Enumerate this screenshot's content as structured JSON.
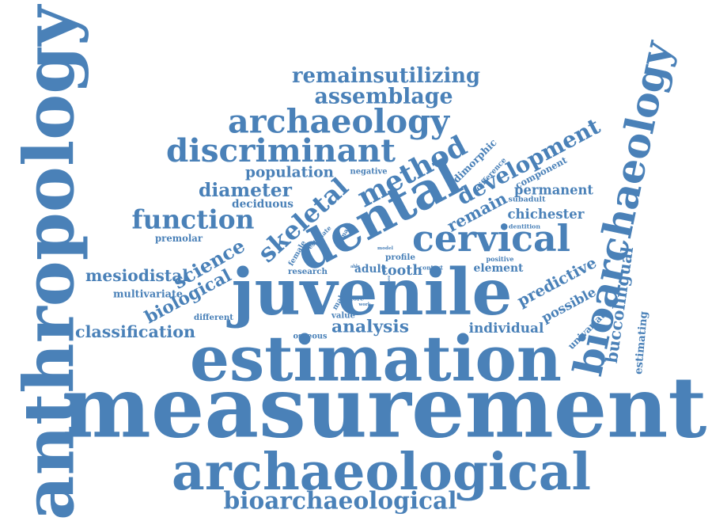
{
  "word_cloud": {
    "text_color": "#4a81b8",
    "background_color": "#ffffff",
    "words": [
      {
        "text": "measurement",
        "weight": 100,
        "orientation": "horizontal"
      },
      {
        "text": "anthropology",
        "weight": 78,
        "orientation": "vertical"
      },
      {
        "text": "juvenile",
        "weight": 66,
        "orientation": "horizontal"
      },
      {
        "text": "estimation",
        "weight": 62,
        "orientation": "horizontal"
      },
      {
        "text": "archaeological",
        "weight": 57,
        "orientation": "horizontal"
      },
      {
        "text": "bioarchaeology",
        "weight": 52,
        "orientation": "vertical"
      },
      {
        "text": "dental",
        "weight": 46,
        "orientation": "diagonal"
      },
      {
        "text": "cervical",
        "weight": 38,
        "orientation": "horizontal"
      },
      {
        "text": "archaeology",
        "weight": 37,
        "orientation": "horizontal"
      },
      {
        "text": "discriminant",
        "weight": 33,
        "orientation": "horizontal"
      },
      {
        "text": "function",
        "weight": 33,
        "orientation": "horizontal"
      },
      {
        "text": "method",
        "weight": 33,
        "orientation": "diagonal"
      },
      {
        "text": "skeletal",
        "weight": 30,
        "orientation": "diagonal"
      },
      {
        "text": "bioarchaeological",
        "weight": 29,
        "orientation": "horizontal"
      },
      {
        "text": "development",
        "weight": 26,
        "orientation": "diagonal"
      },
      {
        "text": "diameter",
        "weight": 26,
        "orientation": "horizontal"
      },
      {
        "text": "remainsutilizing",
        "weight": 26,
        "orientation": "horizontal"
      },
      {
        "text": "assemblage",
        "weight": 26,
        "orientation": "horizontal"
      },
      {
        "text": "mesiodistal",
        "weight": 22,
        "orientation": "horizontal"
      },
      {
        "text": "science",
        "weight": 22,
        "orientation": "diagonal"
      },
      {
        "text": "biological",
        "weight": 20,
        "orientation": "diagonal"
      },
      {
        "text": "classification",
        "weight": 20,
        "orientation": "horizontal"
      },
      {
        "text": "analysis",
        "weight": 20,
        "orientation": "horizontal"
      },
      {
        "text": "remain",
        "weight": 18,
        "orientation": "diagonal"
      },
      {
        "text": "buccolingual",
        "weight": 18,
        "orientation": "vertical"
      },
      {
        "text": "population",
        "weight": 17,
        "orientation": "horizontal"
      },
      {
        "text": "predictive",
        "weight": 17,
        "orientation": "diagonal"
      },
      {
        "text": "permanent",
        "weight": 16,
        "orientation": "horizontal"
      },
      {
        "text": "chichester",
        "weight": 15,
        "orientation": "horizontal"
      },
      {
        "text": "tooth",
        "weight": 15,
        "orientation": "horizontal"
      },
      {
        "text": "dimorphic",
        "weight": 14,
        "orientation": "diagonal"
      },
      {
        "text": "individual",
        "weight": 14,
        "orientation": "horizontal"
      },
      {
        "text": "deciduous",
        "weight": 13,
        "orientation": "horizontal"
      },
      {
        "text": "multivariate",
        "weight": 12,
        "orientation": "horizontal"
      },
      {
        "text": "element",
        "weight": 12,
        "orientation": "horizontal"
      },
      {
        "text": "adult",
        "weight": 12,
        "orientation": "horizontal"
      },
      {
        "text": "possible",
        "weight": 12,
        "orientation": "diagonal"
      },
      {
        "text": "estimating",
        "weight": 12,
        "orientation": "vertical"
      },
      {
        "text": "component",
        "weight": 11,
        "orientation": "diagonal"
      },
      {
        "text": "univariate",
        "weight": 10,
        "orientation": "diagonal"
      },
      {
        "text": "premolar",
        "weight": 10,
        "orientation": "horizontal"
      },
      {
        "text": "research",
        "weight": 10,
        "orientation": "horizontal"
      },
      {
        "text": "different",
        "weight": 10,
        "orientation": "horizontal"
      },
      {
        "text": "difference",
        "weight": 10,
        "orientation": "diagonal"
      },
      {
        "text": "negative",
        "weight": 10,
        "orientation": "horizontal"
      },
      {
        "text": "subadult",
        "weight": 10,
        "orientation": "horizontal"
      },
      {
        "text": "dentition",
        "weight": 9,
        "orientation": "horizontal"
      },
      {
        "text": "profile",
        "weight": 9,
        "orientation": "horizontal"
      },
      {
        "text": "female",
        "weight": 9,
        "orientation": "diagonal"
      },
      {
        "text": "estimate",
        "weight": 8,
        "orientation": "diagonal"
      },
      {
        "text": "primary",
        "weight": 8,
        "orientation": "diagonal"
      },
      {
        "text": "male",
        "weight": 9,
        "orientation": "diagonal"
      },
      {
        "text": "positive",
        "weight": 8,
        "orientation": "horizontal"
      },
      {
        "text": "more",
        "weight": 8,
        "orientation": "horizontal"
      },
      {
        "text": "value",
        "weight": 8,
        "orientation": "horizontal"
      },
      {
        "text": "osseous",
        "weight": 8,
        "orientation": "horizontal"
      },
      {
        "text": "model",
        "weight": 6,
        "orientation": "horizontal"
      },
      {
        "text": "context",
        "weight": 6,
        "orientation": "horizontal"
      },
      {
        "text": "lower",
        "weight": 5,
        "orientation": "vertical"
      },
      {
        "text": "able",
        "weight": 5,
        "orientation": "horizontal"
      },
      {
        "text": "work",
        "weight": 5,
        "orientation": "horizontal"
      }
    ]
  }
}
